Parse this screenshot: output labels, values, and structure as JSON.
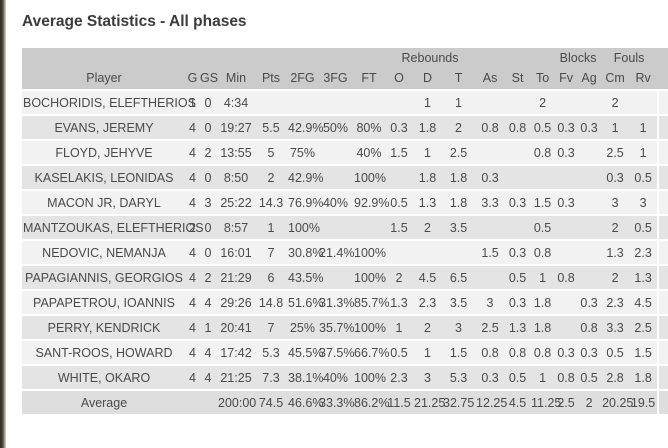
{
  "title": "Average Statistics - All phases",
  "colors": {
    "header_bg": "#cbcbcb",
    "row_light": "#f2f2f2",
    "row_dark": "#e4e4e4",
    "average_bg": "#dedede",
    "text": "#4a4a4a",
    "title_text": "#3b3b3b",
    "window_edge": "#35332a"
  },
  "table": {
    "group_headers": [
      {
        "label": "",
        "span": 8
      },
      {
        "label": "Rebounds",
        "span": 3
      },
      {
        "label": "",
        "span": 3
      },
      {
        "label": "Blocks",
        "span": 2
      },
      {
        "label": "Fouls",
        "span": 2
      },
      {
        "label": "",
        "span": 1
      }
    ],
    "columns": [
      "Player",
      "G",
      "GS",
      "Min",
      "Pts",
      "2FG",
      "3FG",
      "FT",
      "O",
      "D",
      "T",
      "As",
      "St",
      "To",
      "Fv",
      "Ag",
      "Cm",
      "Rv",
      ""
    ],
    "rows": [
      [
        "BOCHORIDIS, ELEFTHERIOS",
        "1",
        "0",
        "4:34",
        "",
        "",
        "",
        "",
        "",
        "1",
        "1",
        "",
        "",
        "2",
        "",
        "",
        "2",
        ""
      ],
      [
        "EVANS, JEREMY",
        "4",
        "0",
        "19:27",
        "5.5",
        "42.9%",
        "50%",
        "80%",
        "0.3",
        "1.8",
        "2",
        "0.8",
        "0.8",
        "0.5",
        "0.3",
        "0.3",
        "1",
        "1"
      ],
      [
        "FLOYD, JEHYVE",
        "4",
        "2",
        "13:55",
        "5",
        "75%",
        "",
        "40%",
        "1.5",
        "1",
        "2.5",
        "",
        "",
        "0.8",
        "0.3",
        "",
        "2.5",
        "1"
      ],
      [
        "KASELAKIS, LEONIDAS",
        "4",
        "0",
        "8:50",
        "2",
        "42.9%",
        "",
        "100%",
        "",
        "1.8",
        "1.8",
        "0.3",
        "",
        "",
        "",
        "",
        "0.3",
        "0.5"
      ],
      [
        "MACON JR, DARYL",
        "4",
        "3",
        "25:22",
        "14.3",
        "76.9%",
        "40%",
        "92.9%",
        "0.5",
        "1.3",
        "1.8",
        "3.3",
        "0.3",
        "1.5",
        "0.3",
        "",
        "3",
        "3"
      ],
      [
        "MANTZOUKAS, ELEFTHERIOS",
        "2",
        "0",
        "8:57",
        "1",
        "100%",
        "",
        "",
        "1.5",
        "2",
        "3.5",
        "",
        "",
        "0.5",
        "",
        "",
        "2",
        "0.5"
      ],
      [
        "NEDOVIC, NEMANJA",
        "4",
        "0",
        "16:01",
        "7",
        "30.8%",
        "21.4%",
        "100%",
        "",
        "",
        "",
        "1.5",
        "0.3",
        "0.8",
        "",
        "",
        "1.3",
        "2.3"
      ],
      [
        "PAPAGIANNIS, GEORGIOS",
        "4",
        "2",
        "21:29",
        "6",
        "43.5%",
        "",
        "100%",
        "2",
        "4.5",
        "6.5",
        "",
        "0.5",
        "1",
        "0.8",
        "",
        "2",
        "1.3"
      ],
      [
        "PAPAPETROU, IOANNIS",
        "4",
        "4",
        "29:26",
        "14.8",
        "51.6%",
        "31.3%",
        "85.7%",
        "1.3",
        "2.3",
        "3.5",
        "3",
        "0.3",
        "1.8",
        "",
        "0.3",
        "2.3",
        "4.5"
      ],
      [
        "PERRY, KENDRICK",
        "4",
        "1",
        "20:41",
        "7",
        "25%",
        "35.7%",
        "100%",
        "1",
        "2",
        "3",
        "2.5",
        "1.3",
        "1.8",
        "",
        "0.8",
        "3.3",
        "2.5"
      ],
      [
        "SANT-ROOS, HOWARD",
        "4",
        "4",
        "17:42",
        "5.3",
        "45.5%",
        "37.5%",
        "66.7%",
        "0.5",
        "1",
        "1.5",
        "0.8",
        "0.8",
        "0.8",
        "0.3",
        "0.3",
        "0.5",
        "1.5"
      ],
      [
        "WHITE, OKARO",
        "4",
        "4",
        "21:25",
        "7.3",
        "38.1%",
        "40%",
        "100%",
        "2.3",
        "3",
        "5.3",
        "0.3",
        "0.5",
        "1",
        "0.8",
        "0.5",
        "2.8",
        "1.8"
      ]
    ],
    "average_row": [
      "Average",
      "",
      "",
      "200:00",
      "74.5",
      "46.6%",
      "33.3%",
      "86.2%",
      "11.5",
      "21.25",
      "32.75",
      "12.25",
      "4.5",
      "11.25",
      "2.5",
      "2",
      "20.25",
      "19.5"
    ]
  }
}
